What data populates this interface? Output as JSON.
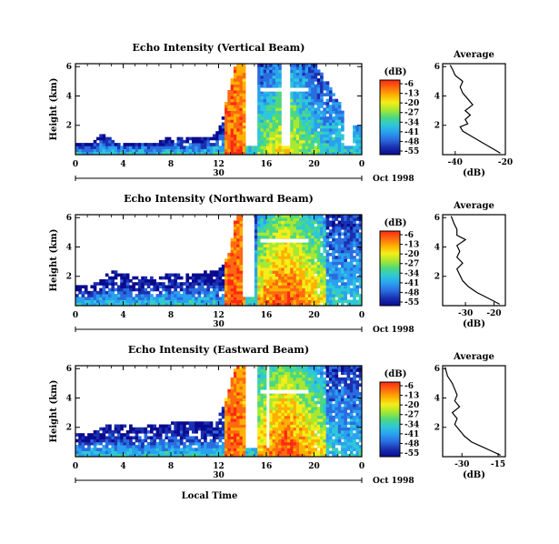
{
  "chart_data": {
    "type": "heatmap",
    "colorbar": {
      "unit_label": "(dB)",
      "ticks": [
        "-6",
        "-13",
        "-20",
        "-27",
        "-34",
        "-41",
        "-48",
        "-55"
      ],
      "colors": [
        "#ff2a10",
        "#ff6a10",
        "#ffb000",
        "#f4ee1a",
        "#a8e830",
        "#4cd880",
        "#2ec8d8",
        "#2aa0f0",
        "#2a6ce0",
        "#1a30b0",
        "#0a0a90"
      ]
    },
    "x_axis": {
      "ticks": [
        "0",
        "4",
        "8",
        "12",
        "16",
        "20",
        "0"
      ],
      "range_hours": [
        0,
        24
      ],
      "day_label": "30",
      "month_label": "Oct 1998",
      "label": "Local Time"
    },
    "heatmap_panels": [
      {
        "title": "Echo Intensity (Vertical Beam)",
        "ylabel": "Height (km)",
        "yticks": [
          "2",
          "4",
          "6"
        ],
        "ylim_km": [
          0,
          6.2
        ],
        "max_height_at_hour": [
          [
            0,
            0.6
          ],
          [
            1.5,
            0.65
          ],
          [
            2,
            1.3
          ],
          [
            3,
            1.1
          ],
          [
            3.5,
            0.7
          ],
          [
            7,
            0.75
          ],
          [
            7.5,
            1.05
          ],
          [
            11,
            1.05
          ],
          [
            12,
            1.6
          ],
          [
            13.5,
            6.2
          ],
          [
            20,
            6.2
          ],
          [
            21,
            5
          ],
          [
            22,
            3.6
          ],
          [
            23,
            2.2
          ],
          [
            24,
            1.8
          ]
        ],
        "blank_intervals_hours": [
          [
            14.2,
            15.2
          ],
          [
            17.2,
            18
          ],
          [
            22.6,
            23.2
          ]
        ]
      },
      {
        "title": "Echo Intensity (Northward Beam)",
        "ylabel": "Height (km)",
        "yticks": [
          "2",
          "4",
          "6"
        ],
        "ylim_km": [
          0,
          6.2
        ],
        "max_height_at_hour": [
          [
            0,
            1.2
          ],
          [
            1,
            1.3
          ],
          [
            2,
            1.5
          ],
          [
            3,
            2.3
          ],
          [
            4,
            2.1
          ],
          [
            5,
            1.9
          ],
          [
            6,
            1.8
          ],
          [
            7,
            1.8
          ],
          [
            8,
            2.2
          ],
          [
            10,
            2.0
          ],
          [
            11,
            2.3
          ],
          [
            12,
            2.3
          ],
          [
            12.8,
            3.2
          ],
          [
            13.5,
            6.2
          ],
          [
            24,
            6.2
          ]
        ],
        "blank_intervals_hours": [
          [
            14.1,
            15.0
          ]
        ]
      },
      {
        "title": "Echo Intensity (Eastward Beam)",
        "ylabel": "Height (km)",
        "yticks": [
          "2",
          "4",
          "6"
        ],
        "ylim_km": [
          0,
          6.2
        ],
        "max_height_at_hour": [
          [
            0,
            1.4
          ],
          [
            1,
            1.5
          ],
          [
            2,
            1.9
          ],
          [
            3,
            2.1
          ],
          [
            4,
            2.2
          ],
          [
            5,
            1.9
          ],
          [
            6,
            2.0
          ],
          [
            7,
            2.1
          ],
          [
            8,
            2.2
          ],
          [
            10,
            2.3
          ],
          [
            11,
            2.2
          ],
          [
            12,
            2.6
          ],
          [
            12.5,
            3.6
          ],
          [
            13.5,
            6.2
          ],
          [
            24,
            6.2
          ]
        ],
        "blank_intervals_hours": [
          [
            14.2,
            15.2
          ],
          [
            15.9,
            16.3
          ]
        ]
      }
    ],
    "profiles": [
      {
        "title": "Average",
        "xlabel": "(dB)",
        "xticks": [
          "-40",
          "-20"
        ],
        "xlim": [
          -45,
          -20
        ],
        "yticks": [
          "2",
          "4",
          "6"
        ],
        "ylim_km": [
          0,
          6.2
        ],
        "points": [
          [
            -22,
            0.1
          ],
          [
            -25,
            0.4
          ],
          [
            -29,
            0.8
          ],
          [
            -33,
            1.2
          ],
          [
            -37,
            1.6
          ],
          [
            -38,
            1.9
          ],
          [
            -35,
            2.1
          ],
          [
            -36,
            2.4
          ],
          [
            -34,
            2.7
          ],
          [
            -36,
            3.0
          ],
          [
            -33,
            3.4
          ],
          [
            -35,
            3.8
          ],
          [
            -37,
            4.2
          ],
          [
            -38,
            4.6
          ],
          [
            -37,
            5.0
          ],
          [
            -40,
            5.4
          ],
          [
            -41,
            5.8
          ],
          [
            -42,
            6.1
          ]
        ]
      },
      {
        "title": "Average",
        "xlabel": "(dB)",
        "xticks": [
          "-30",
          "-20"
        ],
        "xlim": [
          -38,
          -16
        ],
        "yticks": [
          "2",
          "4",
          "6"
        ],
        "ylim_km": [
          0,
          6.2
        ],
        "points": [
          [
            -18,
            0.1
          ],
          [
            -22,
            0.5
          ],
          [
            -26,
            0.9
          ],
          [
            -29,
            1.3
          ],
          [
            -31,
            1.7
          ],
          [
            -32,
            2.1
          ],
          [
            -33,
            2.5
          ],
          [
            -31,
            2.9
          ],
          [
            -33,
            3.3
          ],
          [
            -32,
            3.7
          ],
          [
            -33,
            4.1
          ],
          [
            -30,
            4.5
          ],
          [
            -33,
            4.8
          ],
          [
            -33,
            5.2
          ],
          [
            -34,
            5.6
          ],
          [
            -35,
            6.1
          ]
        ]
      },
      {
        "title": "Average",
        "xlabel": "(dB)",
        "xticks": [
          "-30",
          "-15"
        ],
        "xlim": [
          -38,
          -12
        ],
        "yticks": [
          "2",
          "4",
          "6"
        ],
        "ylim_km": [
          0,
          6.2
        ],
        "points": [
          [
            -14,
            0.1
          ],
          [
            -18,
            0.4
          ],
          [
            -22,
            0.7
          ],
          [
            -26,
            1.0
          ],
          [
            -29,
            1.4
          ],
          [
            -31,
            1.8
          ],
          [
            -33,
            2.2
          ],
          [
            -32,
            2.6
          ],
          [
            -34,
            3.0
          ],
          [
            -31,
            3.4
          ],
          [
            -33,
            3.8
          ],
          [
            -32,
            4.2
          ],
          [
            -33,
            4.6
          ],
          [
            -34,
            5.0
          ],
          [
            -36,
            5.5
          ],
          [
            -37,
            6.1
          ]
        ]
      }
    ]
  }
}
